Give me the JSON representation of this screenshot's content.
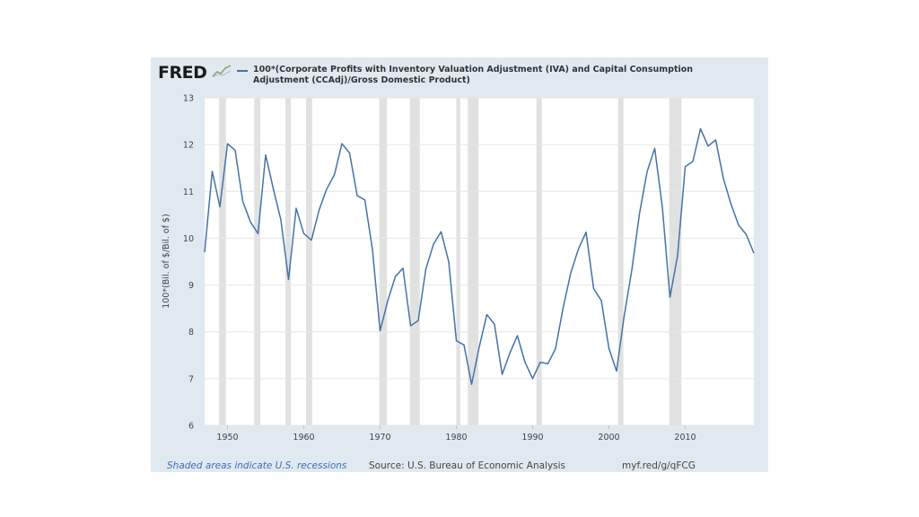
{
  "header": {
    "logo_text": "FRED",
    "logo_icon": "line-graph-icon",
    "series_title": "100*(Corporate Profits with Inventory Valuation Adjustment (IVA) and Capital Consumption Adjustment (CCAdj)/Gross Domestic Product)"
  },
  "footer": {
    "recession_note": "Shaded areas indicate U.S. recessions",
    "source": "Source: U.S. Bureau of Economic Analysis",
    "short_link": "myf.red/g/qFCG"
  },
  "colors": {
    "line": "#4572a7",
    "recession": "#e1e1e1",
    "card_background": "#e1e9f0",
    "plot_background": "#ffffff"
  },
  "chart_data": {
    "type": "line",
    "title": "100*(Corporate Profits with Inventory Valuation Adjustment (IVA) and Capital Consumption Adjustment (CCAdj)/Gross Domestic Product)",
    "xlabel": "",
    "ylabel": "100*(Bil. of $/Bil. of $)",
    "xlim": [
      1947,
      2019
    ],
    "ylim": [
      6,
      13
    ],
    "x_ticks": [
      1950,
      1960,
      1970,
      1980,
      1990,
      2000,
      2010
    ],
    "y_ticks": [
      6,
      7,
      8,
      9,
      10,
      11,
      12,
      13
    ],
    "grid": true,
    "legend": "top",
    "recessions": [
      [
        1948.9,
        1949.8
      ],
      [
        1953.5,
        1954.3
      ],
      [
        1957.6,
        1958.3
      ],
      [
        1960.3,
        1961.1
      ],
      [
        1969.9,
        1970.9
      ],
      [
        1973.9,
        1975.2
      ],
      [
        1980.0,
        1980.5
      ],
      [
        1981.5,
        1982.9
      ],
      [
        1990.5,
        1991.2
      ],
      [
        2001.2,
        2001.9
      ],
      [
        2007.9,
        2009.5
      ]
    ],
    "series": [
      {
        "name": "100*(Corporate Profits with Inventory Valuation Adjustment (IVA) and Capital Consumption Adjustment (CCAdj)/Gross Domestic Product)",
        "x": [
          1947,
          1948,
          1949,
          1950,
          1951,
          1952,
          1953,
          1954,
          1955,
          1956,
          1957,
          1958,
          1959,
          1960,
          1961,
          1962,
          1963,
          1964,
          1965,
          1966,
          1967,
          1968,
          1969,
          1970,
          1971,
          1972,
          1973,
          1974,
          1975,
          1976,
          1977,
          1978,
          1979,
          1980,
          1981,
          1982,
          1983,
          1984,
          1985,
          1986,
          1987,
          1988,
          1989,
          1990,
          1991,
          1992,
          1993,
          1994,
          1995,
          1996,
          1997,
          1998,
          1999,
          2000,
          2001,
          2002,
          2003,
          2004,
          2005,
          2006,
          2007,
          2008,
          2009,
          2010,
          2011,
          2012,
          2013,
          2014,
          2015,
          2016,
          2017,
          2018,
          2019
        ],
        "y": [
          9.7,
          11.43,
          10.67,
          12.02,
          11.88,
          10.79,
          10.35,
          10.1,
          11.78,
          11.06,
          10.39,
          9.12,
          10.64,
          10.1,
          9.96,
          10.6,
          11.05,
          11.35,
          12.02,
          11.82,
          10.91,
          10.82,
          9.76,
          8.02,
          8.66,
          9.18,
          9.36,
          8.13,
          8.24,
          9.34,
          9.87,
          10.14,
          9.5,
          7.81,
          7.72,
          6.88,
          7.68,
          8.37,
          8.16,
          7.09,
          7.54,
          7.92,
          7.35,
          7.0,
          7.35,
          7.32,
          7.64,
          8.52,
          9.26,
          9.77,
          10.13,
          8.92,
          8.67,
          7.65,
          7.16,
          8.34,
          9.32,
          10.52,
          11.42,
          11.92,
          10.67,
          8.74,
          9.63,
          11.53,
          11.64,
          12.34,
          11.97,
          12.1,
          11.28,
          10.73,
          10.28,
          10.08,
          9.68
        ]
      }
    ]
  }
}
